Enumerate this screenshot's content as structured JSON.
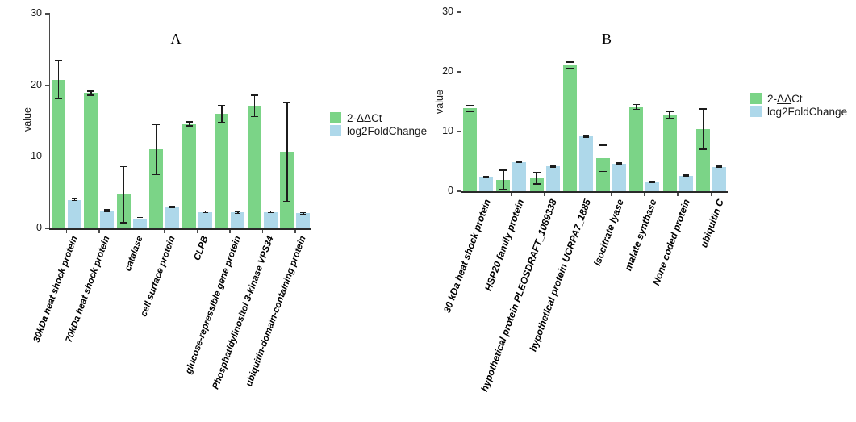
{
  "chart_data": [
    {
      "type": "bar",
      "title": "A",
      "xlabel": "",
      "ylabel": "value",
      "ylim": [
        0,
        30
      ],
      "yticks": [
        0,
        10,
        20,
        30
      ],
      "grid": false,
      "legend_position": "right",
      "categories": [
        "30kDa heat shock  protein",
        "70kDa heat shock protein",
        "catalase",
        "cell surface protein",
        "CLPB",
        "glucose-repressible gene protein",
        "Phosphatidylinositol 3-kinase VPS34",
        "ubiquitin-domain-containing protein"
      ],
      "series": [
        {
          "name": "2-ΔΔCt",
          "name_parts": {
            "pre": "2-",
            "underlined": "ΔΔ",
            "post": "Ct"
          },
          "color": "#7bd487",
          "values": [
            20.8,
            18.9,
            4.7,
            11.0,
            14.6,
            16.0,
            17.1,
            10.7
          ],
          "errors": [
            2.7,
            0.3,
            3.9,
            3.5,
            0.3,
            1.2,
            1.5,
            6.9
          ]
        },
        {
          "name": "log2FoldChange",
          "color": "#aed8ea",
          "values": [
            4.0,
            2.5,
            1.4,
            3.0,
            2.3,
            2.2,
            2.3,
            2.1
          ],
          "errors": [
            0.12,
            0.12,
            0.12,
            0.12,
            0.12,
            0.12,
            0.12,
            0.12
          ]
        }
      ]
    },
    {
      "type": "bar",
      "title": "B",
      "xlabel": "",
      "ylabel": "value",
      "ylim": [
        0,
        30
      ],
      "yticks": [
        0,
        10,
        20,
        30
      ],
      "grid": false,
      "legend_position": "right",
      "categories": [
        "30 kDa heat shock protein",
        "HSP20 family protein",
        "hypothetical protein PLEOSDRAFT_1089338",
        "hypothetical protein UCRPA7_1885",
        "isocitrate lyase",
        "malate synthase",
        "None coded protein",
        "ubiquitin C"
      ],
      "series": [
        {
          "name": "2-ΔΔCt",
          "name_parts": {
            "pre": "2-",
            "underlined": "ΔΔ",
            "post": "Ct"
          },
          "color": "#7bd487",
          "values": [
            13.9,
            1.9,
            2.2,
            21.1,
            5.5,
            14.1,
            12.8,
            10.4
          ],
          "errors": [
            0.5,
            1.6,
            1.0,
            0.5,
            2.2,
            0.4,
            0.6,
            3.4
          ]
        },
        {
          "name": "log2FoldChange",
          "color": "#aed8ea",
          "values": [
            2.4,
            4.9,
            4.2,
            9.2,
            4.6,
            1.6,
            2.6,
            4.1
          ],
          "errors": [
            0.12,
            0.12,
            0.12,
            0.12,
            0.12,
            0.12,
            0.12,
            0.12
          ]
        }
      ]
    }
  ]
}
